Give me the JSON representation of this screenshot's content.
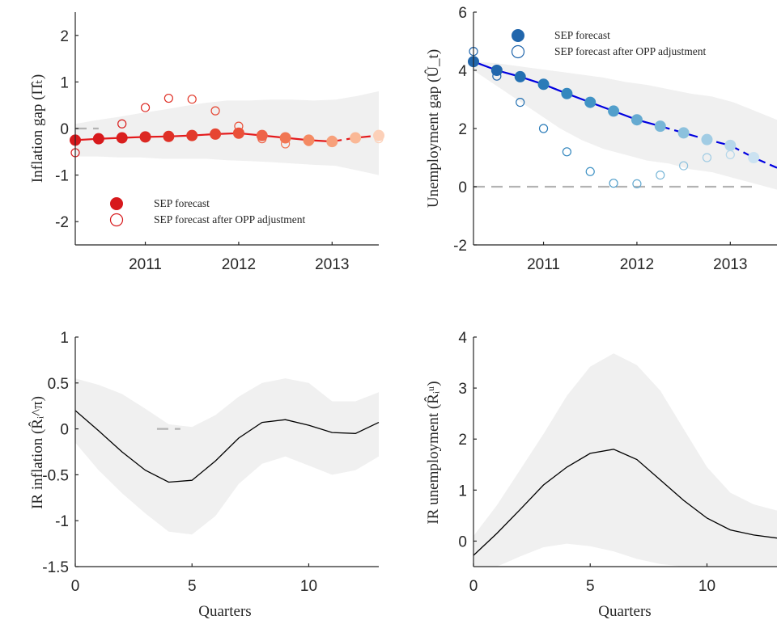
{
  "colors": {
    "band": "#f0f0f0",
    "axis": "#262626",
    "zero": "#b3b3b3",
    "inflation_line": "#e41a1c",
    "unemployment_line": "#0000e0",
    "ir_line": "#000000"
  },
  "chart_data": [
    {
      "id": "inflation",
      "type": "line",
      "ylabel": "Inflation gap (Π̂ₜ)",
      "xlabel": "",
      "ylim": [
        -2.5,
        2.5
      ],
      "xlim": [
        2010.25,
        2013.5
      ],
      "yticks": [
        -2,
        -1,
        0,
        1,
        2
      ],
      "ytick_labels": [
        "-2",
        "-1",
        "0",
        "1",
        "2"
      ],
      "xticks": [
        2011,
        2012,
        2013
      ],
      "xtick_labels": [
        "2011",
        "2012",
        "2013"
      ],
      "legend": [
        "SEP forecast",
        "SEP forecast after OPP adjustment"
      ],
      "legend_position": "bottom-left",
      "grid": false,
      "zero_line": {
        "y": 0,
        "x": [
          2010.25,
          2010.5
        ]
      },
      "band_upper": [
        0.1,
        0.18,
        0.25,
        0.33,
        0.4,
        0.48,
        0.55,
        0.6,
        0.6,
        0.62,
        0.62,
        0.6,
        0.62,
        0.7,
        0.8
      ],
      "band_lower": [
        -0.6,
        -0.6,
        -0.62,
        -0.62,
        -0.65,
        -0.65,
        -0.65,
        -0.68,
        -0.7,
        -0.72,
        -0.75,
        -0.78,
        -0.8,
        -0.9,
        -1.0
      ],
      "x": [
        2010.25,
        2010.5,
        2010.75,
        2011.0,
        2011.25,
        2011.5,
        2011.75,
        2012.0,
        2012.25,
        2012.5,
        2012.75,
        2013.0,
        2013.25,
        2013.5
      ],
      "sep": [
        -0.25,
        -0.22,
        -0.2,
        -0.18,
        -0.17,
        -0.15,
        -0.12,
        -0.1,
        -0.15,
        -0.2,
        -0.25,
        -0.28,
        -0.2,
        -0.15
      ],
      "sep_opp": [
        -0.52,
        -0.23,
        0.1,
        0.45,
        0.65,
        0.63,
        0.38,
        0.05,
        -0.22,
        -0.33,
        -0.28,
        -0.25,
        -0.2,
        -0.22
      ],
      "solid_until": 2013.0,
      "marker_colors": [
        "#d7191c",
        "#d7191c",
        "#d91f1e",
        "#dc2822",
        "#df3026",
        "#e23a2b",
        "#e64532",
        "#ea5139",
        "#ee6348",
        "#f17653",
        "#f48a63",
        "#f7a07b",
        "#fab896",
        "#fcd0b8"
      ]
    },
    {
      "id": "unemployment",
      "type": "line",
      "ylabel": "Unemployment gap (Û_t)",
      "xlabel": "",
      "ylim": [
        -2,
        6
      ],
      "xlim": [
        2010.25,
        2013.5
      ],
      "yticks": [
        -2,
        0,
        2,
        4,
        6
      ],
      "ytick_labels": [
        "-2",
        "0",
        "2",
        "4",
        "6"
      ],
      "xticks": [
        2011,
        2012,
        2013
      ],
      "xtick_labels": [
        "2011",
        "2012",
        "2013"
      ],
      "legend": [
        "SEP forecast",
        "SEP forecast after OPP adjustment"
      ],
      "legend_position": "top-right",
      "grid": false,
      "zero_line": {
        "y": 0,
        "x": [
          2010.25,
          2013.25
        ]
      },
      "band_upper": [
        4.3,
        4.25,
        4.15,
        4.05,
        3.95,
        3.85,
        3.75,
        3.6,
        3.5,
        3.35,
        3.2,
        3.1,
        2.9,
        2.6,
        2.3
      ],
      "band_lower": [
        4.0,
        3.5,
        3.0,
        2.5,
        2.0,
        1.6,
        1.3,
        1.1,
        0.9,
        0.8,
        0.6,
        0.5,
        0.3,
        0.1,
        -0.1
      ],
      "x": [
        2010.25,
        2010.5,
        2010.75,
        2011.0,
        2011.25,
        2011.5,
        2011.75,
        2012.0,
        2012.25,
        2012.5,
        2012.75,
        2013.0,
        2013.25
      ],
      "sep": [
        4.3,
        4.0,
        3.78,
        3.52,
        3.2,
        2.9,
        2.6,
        2.3,
        2.08,
        1.85,
        1.62,
        1.42,
        1.0
      ],
      "sep_opp": [
        4.65,
        3.8,
        2.9,
        2.0,
        1.2,
        0.52,
        0.12,
        0.1,
        0.4,
        0.72,
        1.0,
        1.1,
        1.0
      ],
      "line_extra": [
        [
          2013.5,
          0.65
        ]
      ],
      "solid_until": 2012.25,
      "marker_colors": [
        "#2166ac",
        "#2166ac",
        "#2370b2",
        "#2a7bb8",
        "#3487be",
        "#4193c5",
        "#529fcb",
        "#65aad1",
        "#78b6d7",
        "#8cc1dd",
        "#a1cce4",
        "#b6d7ea",
        "#cbe2f1"
      ]
    },
    {
      "id": "ir_inflation",
      "type": "line",
      "ylabel": "IR inflation (R̂ᵢ^π)",
      "xlabel": "Quarters",
      "ylim": [
        -1.5,
        1
      ],
      "xlim": [
        0,
        13
      ],
      "yticks": [
        -1.5,
        -1,
        -0.5,
        0,
        0.5,
        1
      ],
      "ytick_labels": [
        "-1.5",
        "-1",
        "-0.5",
        "0",
        "0.5",
        "1"
      ],
      "xticks": [
        0,
        5,
        10
      ],
      "xtick_labels": [
        "0",
        "5",
        "10"
      ],
      "grid": false,
      "zero_line": {
        "y": 0,
        "x": [
          3.5,
          4.5
        ]
      },
      "x": [
        0,
        1,
        2,
        3,
        4,
        5,
        6,
        7,
        8,
        9,
        10,
        11,
        12,
        13
      ],
      "y": [
        0.2,
        -0.02,
        -0.25,
        -0.45,
        -0.58,
        -0.56,
        -0.35,
        -0.1,
        0.07,
        0.1,
        0.04,
        -0.04,
        -0.05,
        0.07
      ],
      "band_upper": [
        0.55,
        0.48,
        0.38,
        0.22,
        0.05,
        0.02,
        0.15,
        0.35,
        0.5,
        0.55,
        0.5,
        0.3,
        0.3,
        0.4
      ],
      "band_lower": [
        -0.15,
        -0.45,
        -0.7,
        -0.92,
        -1.12,
        -1.15,
        -0.95,
        -0.6,
        -0.38,
        -0.3,
        -0.4,
        -0.5,
        -0.45,
        -0.3
      ]
    },
    {
      "id": "ir_unemployment",
      "type": "line",
      "ylabel": "IR unemployment (R̂ᵢᵘ)",
      "xlabel": "Quarters",
      "ylim": [
        -0.5,
        4
      ],
      "xlim": [
        0,
        13
      ],
      "yticks": [
        0,
        1,
        2,
        3,
        4
      ],
      "ytick_labels": [
        "0",
        "1",
        "2",
        "3",
        "4"
      ],
      "xticks": [
        0,
        5,
        10
      ],
      "xtick_labels": [
        "0",
        "5",
        "10"
      ],
      "grid": false,
      "x": [
        0,
        1,
        2,
        3,
        4,
        5,
        6,
        7,
        8,
        9,
        10,
        11,
        12,
        13
      ],
      "y": [
        -0.28,
        0.15,
        0.62,
        1.1,
        1.45,
        1.72,
        1.8,
        1.6,
        1.2,
        0.8,
        0.45,
        0.22,
        0.12,
        0.06
      ],
      "band_upper": [
        0.1,
        0.7,
        1.4,
        2.1,
        2.85,
        3.42,
        3.68,
        3.45,
        2.95,
        2.2,
        1.45,
        0.95,
        0.72,
        0.6
      ],
      "band_lower": [
        -0.5,
        -0.5,
        -0.3,
        -0.12,
        -0.05,
        -0.1,
        -0.2,
        -0.35,
        -0.45,
        -0.5,
        -0.5,
        -0.5,
        -0.5,
        -0.5
      ]
    }
  ]
}
